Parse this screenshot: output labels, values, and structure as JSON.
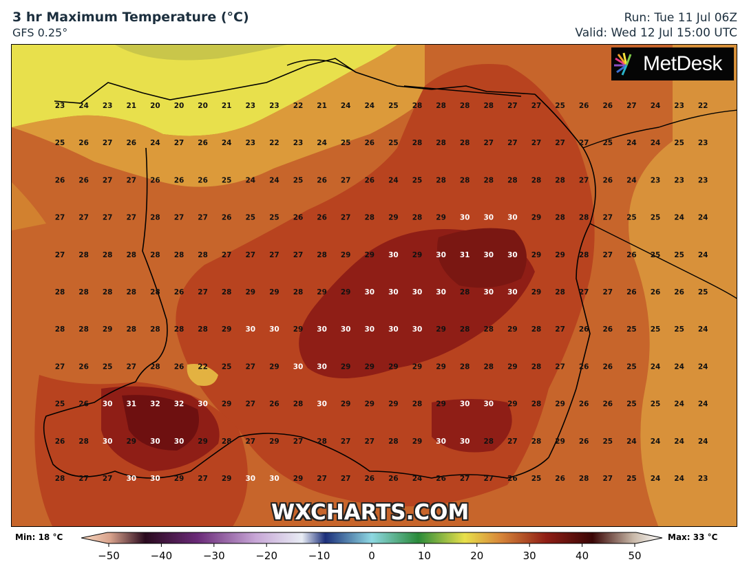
{
  "header": {
    "title": "3 hr Maximum Temperature (°C)",
    "model": "GFS 0.25°",
    "run": "Run: Tue 11 Jul 06Z",
    "valid": "Valid: Wed 12 Jul 15:00 UTC"
  },
  "logo": {
    "text": "MetDesk",
    "icon": "metdesk-starburst-icon"
  },
  "watermark": "WXCHARTS.COM",
  "legend": {
    "min_label": "Min: 18 °C",
    "max_label": "Max: 33 °C",
    "ticks": [
      "−50",
      "−40",
      "−30",
      "−20",
      "−10",
      "0",
      "10",
      "20",
      "30",
      "40",
      "50"
    ]
  },
  "grid_values": [
    [
      23,
      24,
      23,
      21,
      20,
      20,
      20,
      21,
      23,
      23,
      22,
      21,
      24,
      24,
      25,
      28,
      28,
      28,
      28,
      27,
      27,
      25,
      26,
      26,
      27,
      24,
      23,
      22
    ],
    [
      25,
      26,
      27,
      26,
      24,
      27,
      26,
      24,
      23,
      22,
      23,
      24,
      25,
      26,
      25,
      28,
      28,
      28,
      27,
      27,
      27,
      27,
      27,
      25,
      24,
      24,
      25,
      23
    ],
    [
      26,
      26,
      27,
      27,
      26,
      26,
      26,
      25,
      24,
      24,
      25,
      26,
      27,
      26,
      24,
      25,
      28,
      28,
      28,
      28,
      28,
      28,
      27,
      26,
      24,
      23,
      23,
      23
    ],
    [
      27,
      27,
      27,
      27,
      28,
      27,
      27,
      26,
      25,
      25,
      26,
      26,
      27,
      28,
      29,
      28,
      29,
      30,
      30,
      30,
      29,
      28,
      28,
      27,
      25,
      25,
      24,
      24
    ],
    [
      27,
      28,
      28,
      28,
      28,
      28,
      28,
      27,
      27,
      27,
      27,
      28,
      29,
      29,
      30,
      29,
      30,
      31,
      30,
      30,
      29,
      29,
      28,
      27,
      26,
      25,
      25,
      24
    ],
    [
      28,
      28,
      28,
      28,
      28,
      26,
      27,
      28,
      29,
      29,
      28,
      29,
      29,
      30,
      30,
      30,
      30,
      28,
      30,
      30,
      29,
      28,
      27,
      27,
      26,
      26,
      26,
      25
    ],
    [
      28,
      28,
      29,
      28,
      28,
      28,
      28,
      29,
      30,
      30,
      29,
      30,
      30,
      30,
      30,
      30,
      29,
      28,
      28,
      29,
      28,
      27,
      26,
      26,
      25,
      25,
      25,
      24
    ],
    [
      27,
      26,
      25,
      27,
      28,
      26,
      22,
      25,
      27,
      29,
      30,
      30,
      29,
      29,
      29,
      29,
      29,
      28,
      28,
      29,
      28,
      27,
      26,
      26,
      25,
      24,
      24,
      24
    ],
    [
      25,
      26,
      30,
      31,
      32,
      32,
      30,
      29,
      27,
      26,
      28,
      30,
      29,
      29,
      29,
      28,
      29,
      30,
      30,
      29,
      28,
      29,
      26,
      26,
      25,
      25,
      24,
      24
    ],
    [
      26,
      28,
      30,
      29,
      30,
      30,
      29,
      28,
      27,
      29,
      27,
      28,
      27,
      27,
      28,
      29,
      30,
      30,
      28,
      27,
      28,
      29,
      26,
      25,
      24,
      24,
      24,
      24
    ],
    [
      28,
      27,
      27,
      30,
      30,
      29,
      27,
      29,
      30,
      30,
      29,
      27,
      27,
      26,
      26,
      24,
      26,
      27,
      27,
      26,
      25,
      26,
      28,
      27,
      25,
      24,
      24,
      23
    ]
  ],
  "palette": {
    "bg": "#c7652b",
    "cold": "#e8e04c",
    "warm": "#b8431f",
    "hot": "#8f1e16",
    "hottest": "#6e1010",
    "border": "#000000"
  }
}
